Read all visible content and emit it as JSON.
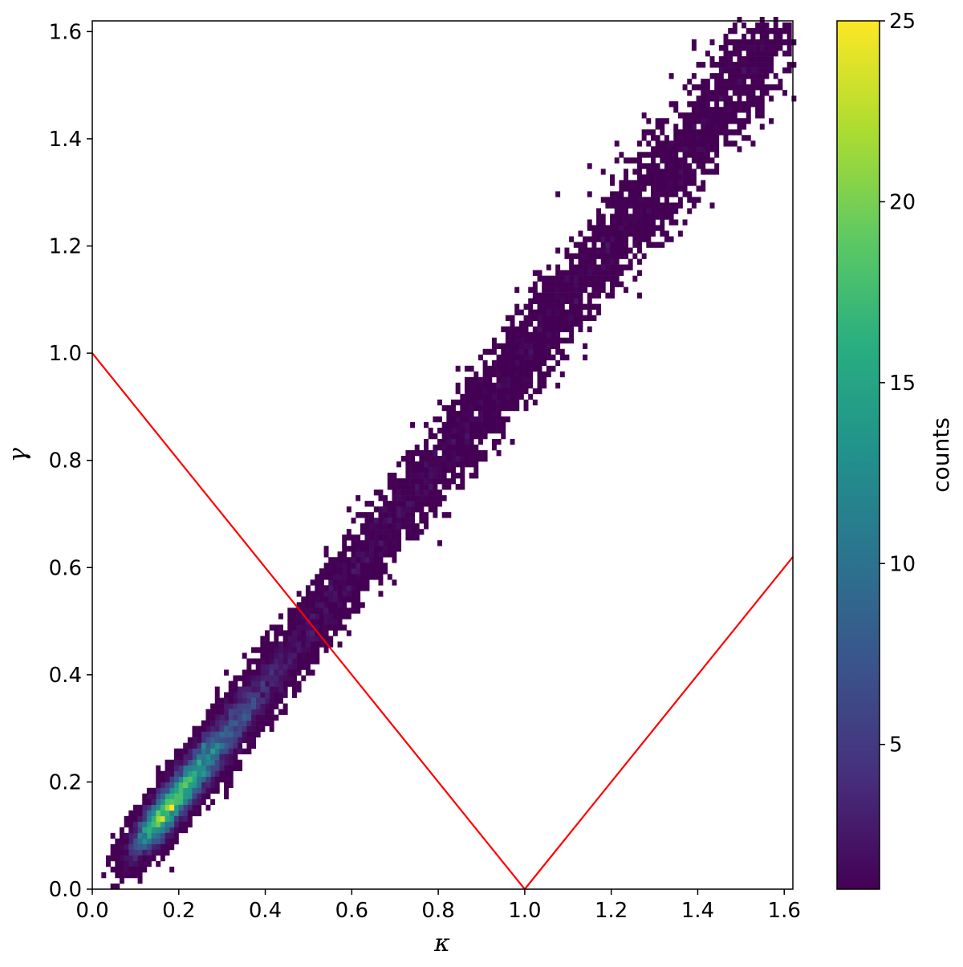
{
  "chart_data": {
    "type": "heatmap",
    "description_kind": "2d-histogram",
    "xlabel": "κ",
    "ylabel": "γ",
    "xlim": [
      0.0,
      1.62
    ],
    "ylim": [
      0.0,
      1.62
    ],
    "xticks": [
      "0.0",
      "0.2",
      "0.4",
      "0.6",
      "0.8",
      "1.0",
      "1.2",
      "1.4",
      "1.6"
    ],
    "yticks": [
      "0.0",
      "0.2",
      "0.4",
      "0.6",
      "0.8",
      "1.0",
      "1.2",
      "1.4",
      "1.6"
    ],
    "grid": false,
    "colormap": "viridis",
    "colorbar": {
      "label": "counts",
      "range": [
        1,
        25
      ],
      "ticks": [
        "5",
        "10",
        "15",
        "20",
        "25"
      ],
      "tick_values": [
        5,
        10,
        15,
        20,
        25
      ]
    },
    "density_ridge": {
      "x_start": 0.12,
      "y_start": 0.08,
      "x_end": 1.61,
      "y_end": 1.61,
      "peak_x": 0.3,
      "peak_y": 0.28,
      "peak_count": 25
    },
    "bin_width": 0.0105,
    "overlay_lines": [
      {
        "color": "#ff0000",
        "points": [
          [
            0.0,
            1.0
          ],
          [
            1.0,
            0.0
          ]
        ]
      },
      {
        "color": "#ff0000",
        "points": [
          [
            1.0,
            0.0
          ],
          [
            1.62,
            0.62
          ]
        ]
      }
    ]
  }
}
